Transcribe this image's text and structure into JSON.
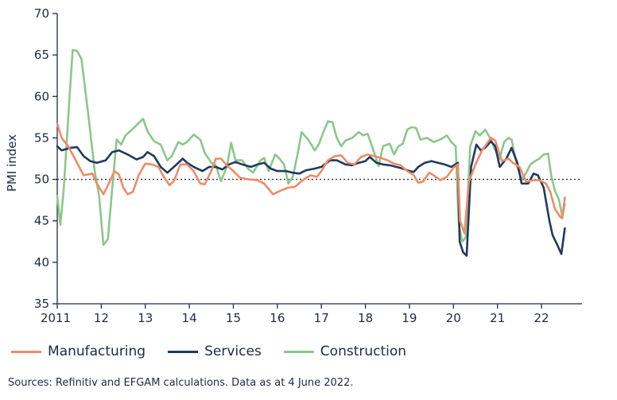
{
  "chart_data": {
    "type": "line",
    "ylabel": "PMI index",
    "xlabel": "",
    "ylim": [
      35,
      70
    ],
    "yticks": [
      35,
      40,
      45,
      50,
      55,
      60,
      65,
      70
    ],
    "xlim": [
      2011,
      2022.92
    ],
    "xticks": [
      {
        "x": 2011,
        "label": "2011"
      },
      {
        "x": 2012,
        "label": "12"
      },
      {
        "x": 2013,
        "label": "13"
      },
      {
        "x": 2014,
        "label": "14"
      },
      {
        "x": 2015,
        "label": "15"
      },
      {
        "x": 2016,
        "label": "16"
      },
      {
        "x": 2017,
        "label": "17"
      },
      {
        "x": 2018,
        "label": "18"
      },
      {
        "x": 2019,
        "label": "19"
      },
      {
        "x": 2020,
        "label": "20"
      },
      {
        "x": 2021,
        "label": "21"
      },
      {
        "x": 2022,
        "label": "22"
      }
    ],
    "reference_line": 50,
    "series": [
      {
        "name": "Manufacturing",
        "color": "#f08a68",
        "points": [
          [
            2011.0,
            56.7
          ],
          [
            2011.1,
            55.0
          ],
          [
            2011.25,
            54.0
          ],
          [
            2011.4,
            52.5
          ],
          [
            2011.6,
            50.5
          ],
          [
            2011.8,
            50.7
          ],
          [
            2011.9,
            49.5
          ],
          [
            2012.05,
            48.2
          ],
          [
            2012.15,
            49.3
          ],
          [
            2012.3,
            51.0
          ],
          [
            2012.4,
            50.6
          ],
          [
            2012.5,
            49.0
          ],
          [
            2012.6,
            48.2
          ],
          [
            2012.72,
            48.5
          ],
          [
            2012.85,
            50.5
          ],
          [
            2013.0,
            51.9
          ],
          [
            2013.15,
            51.8
          ],
          [
            2013.3,
            51.5
          ],
          [
            2013.42,
            50.3
          ],
          [
            2013.55,
            49.3
          ],
          [
            2013.65,
            49.8
          ],
          [
            2013.8,
            51.8
          ],
          [
            2013.95,
            51.8
          ],
          [
            2014.1,
            51.0
          ],
          [
            2014.25,
            49.5
          ],
          [
            2014.35,
            49.4
          ],
          [
            2014.5,
            51.0
          ],
          [
            2014.6,
            52.5
          ],
          [
            2014.72,
            52.5
          ],
          [
            2014.85,
            51.7
          ],
          [
            2015.0,
            51.0
          ],
          [
            2015.15,
            50.2
          ],
          [
            2015.35,
            50.0
          ],
          [
            2015.55,
            49.9
          ],
          [
            2015.7,
            49.5
          ],
          [
            2015.9,
            48.2
          ],
          [
            2016.1,
            48.7
          ],
          [
            2016.25,
            49.0
          ],
          [
            2016.4,
            49.1
          ],
          [
            2016.55,
            49.8
          ],
          [
            2016.75,
            50.5
          ],
          [
            2016.9,
            50.3
          ],
          [
            2017.0,
            51.0
          ],
          [
            2017.15,
            52.3
          ],
          [
            2017.3,
            52.8
          ],
          [
            2017.45,
            52.9
          ],
          [
            2017.6,
            52.0
          ],
          [
            2017.75,
            51.8
          ],
          [
            2017.9,
            52.7
          ],
          [
            2018.05,
            53.0
          ],
          [
            2018.2,
            52.8
          ],
          [
            2018.35,
            52.6
          ],
          [
            2018.5,
            52.3
          ],
          [
            2018.65,
            51.9
          ],
          [
            2018.8,
            51.7
          ],
          [
            2018.95,
            51.0
          ],
          [
            2019.1,
            50.5
          ],
          [
            2019.2,
            49.6
          ],
          [
            2019.3,
            49.7
          ],
          [
            2019.45,
            50.8
          ],
          [
            2019.55,
            50.5
          ],
          [
            2019.7,
            49.9
          ],
          [
            2019.85,
            50.3
          ],
          [
            2020.0,
            51.4
          ],
          [
            2020.1,
            51.8
          ],
          [
            2020.15,
            45.0
          ],
          [
            2020.25,
            43.5
          ],
          [
            2020.35,
            49.7
          ],
          [
            2020.5,
            51.8
          ],
          [
            2020.65,
            53.5
          ],
          [
            2020.85,
            55.0
          ],
          [
            2020.95,
            54.7
          ],
          [
            2021.1,
            52.2
          ],
          [
            2021.25,
            52.5
          ],
          [
            2021.35,
            52.0
          ],
          [
            2021.5,
            51.5
          ],
          [
            2021.65,
            49.7
          ],
          [
            2021.8,
            49.9
          ],
          [
            2021.95,
            49.9
          ],
          [
            2022.1,
            49.5
          ],
          [
            2022.2,
            48.5
          ],
          [
            2022.3,
            46.5
          ],
          [
            2022.42,
            45.5
          ],
          [
            2022.47,
            45.3
          ],
          [
            2022.53,
            47.8
          ]
        ]
      },
      {
        "name": "Services",
        "color": "#1f3a5f",
        "points": [
          [
            2011.0,
            54.0
          ],
          [
            2011.1,
            53.5
          ],
          [
            2011.3,
            53.8
          ],
          [
            2011.45,
            53.9
          ],
          [
            2011.6,
            52.8
          ],
          [
            2011.75,
            52.2
          ],
          [
            2011.9,
            52.0
          ],
          [
            2012.1,
            52.3
          ],
          [
            2012.25,
            53.3
          ],
          [
            2012.4,
            53.5
          ],
          [
            2012.6,
            53.0
          ],
          [
            2012.8,
            52.4
          ],
          [
            2012.95,
            52.7
          ],
          [
            2013.05,
            53.3
          ],
          [
            2013.2,
            52.8
          ],
          [
            2013.35,
            51.5
          ],
          [
            2013.5,
            50.8
          ],
          [
            2013.65,
            51.5
          ],
          [
            2013.85,
            52.5
          ],
          [
            2013.95,
            52.0
          ],
          [
            2014.1,
            51.5
          ],
          [
            2014.3,
            51.0
          ],
          [
            2014.45,
            51.5
          ],
          [
            2014.6,
            51.5
          ],
          [
            2014.75,
            51.2
          ],
          [
            2014.9,
            51.8
          ],
          [
            2015.05,
            52.1
          ],
          [
            2015.2,
            51.8
          ],
          [
            2015.4,
            51.5
          ],
          [
            2015.55,
            51.8
          ],
          [
            2015.7,
            52.0
          ],
          [
            2015.85,
            51.3
          ],
          [
            2016.0,
            51.0
          ],
          [
            2016.2,
            51.0
          ],
          [
            2016.35,
            50.8
          ],
          [
            2016.5,
            50.7
          ],
          [
            2016.65,
            51.1
          ],
          [
            2016.85,
            51.3
          ],
          [
            2017.0,
            51.5
          ],
          [
            2017.2,
            52.3
          ],
          [
            2017.35,
            52.3
          ],
          [
            2017.55,
            51.8
          ],
          [
            2017.7,
            51.7
          ],
          [
            2017.85,
            52.0
          ],
          [
            2018.0,
            52.2
          ],
          [
            2018.1,
            52.7
          ],
          [
            2018.25,
            52.0
          ],
          [
            2018.4,
            51.8
          ],
          [
            2018.55,
            51.7
          ],
          [
            2018.7,
            51.5
          ],
          [
            2018.85,
            51.3
          ],
          [
            2019.0,
            51.0
          ],
          [
            2019.1,
            50.9
          ],
          [
            2019.2,
            51.5
          ],
          [
            2019.35,
            52.0
          ],
          [
            2019.5,
            52.2
          ],
          [
            2019.65,
            52.0
          ],
          [
            2019.8,
            51.8
          ],
          [
            2019.95,
            51.5
          ],
          [
            2020.1,
            52.0
          ],
          [
            2020.14,
            42.5
          ],
          [
            2020.22,
            41.2
          ],
          [
            2020.3,
            40.8
          ],
          [
            2020.4,
            51.5
          ],
          [
            2020.52,
            54.2
          ],
          [
            2020.62,
            53.5
          ],
          [
            2020.72,
            53.8
          ],
          [
            2020.85,
            54.6
          ],
          [
            2020.95,
            54.0
          ],
          [
            2021.05,
            51.5
          ],
          [
            2021.2,
            52.5
          ],
          [
            2021.32,
            53.8
          ],
          [
            2021.45,
            52.0
          ],
          [
            2021.55,
            49.5
          ],
          [
            2021.7,
            49.5
          ],
          [
            2021.82,
            50.7
          ],
          [
            2021.92,
            50.5
          ],
          [
            2022.05,
            49.0
          ],
          [
            2022.18,
            45.0
          ],
          [
            2022.25,
            43.3
          ],
          [
            2022.35,
            42.2
          ],
          [
            2022.45,
            41.0
          ],
          [
            2022.53,
            44.1
          ]
        ]
      },
      {
        "name": "Construction",
        "color": "#8cc78a",
        "points": [
          [
            2011.0,
            48.0
          ],
          [
            2011.07,
            44.5
          ],
          [
            2011.15,
            49.0
          ],
          [
            2011.28,
            60.0
          ],
          [
            2011.35,
            65.6
          ],
          [
            2011.45,
            65.5
          ],
          [
            2011.55,
            64.5
          ],
          [
            2011.7,
            58.0
          ],
          [
            2011.85,
            51.0
          ],
          [
            2011.95,
            48.0
          ],
          [
            2012.05,
            42.1
          ],
          [
            2012.15,
            42.8
          ],
          [
            2012.25,
            49.0
          ],
          [
            2012.35,
            54.8
          ],
          [
            2012.45,
            54.2
          ],
          [
            2012.55,
            55.3
          ],
          [
            2012.7,
            56.0
          ],
          [
            2012.85,
            56.8
          ],
          [
            2012.95,
            57.3
          ],
          [
            2013.05,
            55.8
          ],
          [
            2013.2,
            54.6
          ],
          [
            2013.35,
            54.2
          ],
          [
            2013.5,
            52.3
          ],
          [
            2013.6,
            52.8
          ],
          [
            2013.75,
            54.5
          ],
          [
            2013.85,
            54.2
          ],
          [
            2013.95,
            54.5
          ],
          [
            2014.1,
            55.4
          ],
          [
            2014.25,
            54.8
          ],
          [
            2014.35,
            53.2
          ],
          [
            2014.5,
            52.0
          ],
          [
            2014.6,
            51.7
          ],
          [
            2014.72,
            49.8
          ],
          [
            2014.85,
            51.5
          ],
          [
            2014.95,
            54.4
          ],
          [
            2015.05,
            52.3
          ],
          [
            2015.2,
            52.3
          ],
          [
            2015.35,
            51.2
          ],
          [
            2015.45,
            50.8
          ],
          [
            2015.6,
            52.2
          ],
          [
            2015.7,
            52.6
          ],
          [
            2015.8,
            51.0
          ],
          [
            2015.95,
            53.0
          ],
          [
            2016.05,
            52.5
          ],
          [
            2016.15,
            51.8
          ],
          [
            2016.25,
            49.5
          ],
          [
            2016.35,
            50.3
          ],
          [
            2016.45,
            52.8
          ],
          [
            2016.55,
            55.7
          ],
          [
            2016.7,
            54.8
          ],
          [
            2016.85,
            53.5
          ],
          [
            2016.95,
            54.3
          ],
          [
            2017.05,
            55.8
          ],
          [
            2017.15,
            57.0
          ],
          [
            2017.25,
            56.9
          ],
          [
            2017.35,
            55.0
          ],
          [
            2017.45,
            54.0
          ],
          [
            2017.55,
            54.7
          ],
          [
            2017.7,
            55.0
          ],
          [
            2017.85,
            55.7
          ],
          [
            2017.95,
            55.3
          ],
          [
            2018.05,
            55.5
          ],
          [
            2018.15,
            54.0
          ],
          [
            2018.3,
            51.6
          ],
          [
            2018.4,
            54.0
          ],
          [
            2018.55,
            54.3
          ],
          [
            2018.65,
            53.0
          ],
          [
            2018.75,
            54.0
          ],
          [
            2018.85,
            54.3
          ],
          [
            2018.95,
            56.0
          ],
          [
            2019.05,
            56.3
          ],
          [
            2019.15,
            56.2
          ],
          [
            2019.25,
            54.8
          ],
          [
            2019.4,
            55.0
          ],
          [
            2019.55,
            54.5
          ],
          [
            2019.7,
            54.8
          ],
          [
            2019.85,
            55.3
          ],
          [
            2019.95,
            54.5
          ],
          [
            2020.05,
            54.0
          ],
          [
            2020.12,
            44.5
          ],
          [
            2020.2,
            42.5
          ],
          [
            2020.28,
            43.0
          ],
          [
            2020.38,
            54.0
          ],
          [
            2020.5,
            55.8
          ],
          [
            2020.6,
            55.3
          ],
          [
            2020.72,
            56.0
          ],
          [
            2020.85,
            54.8
          ],
          [
            2020.95,
            53.5
          ],
          [
            2021.05,
            52.5
          ],
          [
            2021.15,
            54.5
          ],
          [
            2021.25,
            55.0
          ],
          [
            2021.32,
            54.8
          ],
          [
            2021.45,
            51.5
          ],
          [
            2021.55,
            50.0
          ],
          [
            2021.62,
            50.5
          ],
          [
            2021.75,
            51.8
          ],
          [
            2021.85,
            52.2
          ],
          [
            2021.95,
            52.5
          ],
          [
            2022.05,
            53.0
          ],
          [
            2022.15,
            53.1
          ],
          [
            2022.22,
            50.5
          ],
          [
            2022.3,
            48.7
          ],
          [
            2022.4,
            47.5
          ],
          [
            2022.47,
            45.5
          ],
          [
            2022.53,
            47.0
          ]
        ]
      }
    ]
  },
  "source": "Sources: Refinitiv and EFGAM calculations. Data as at 4 June 2022."
}
